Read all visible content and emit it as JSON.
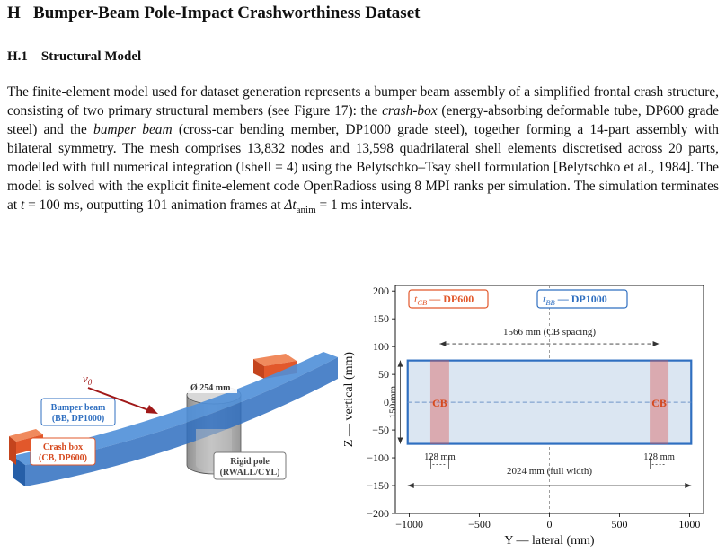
{
  "section": {
    "number": "H",
    "title": "Bumper-Beam Pole-Impact Crashworthiness Dataset"
  },
  "subsection": {
    "number": "H.1",
    "title": "Structural Model"
  },
  "paragraph": {
    "p1": "The finite-element model used for dataset generation represents a bumper beam assembly of a simplified frontal crash structure, consisting of two primary structural members (see Figure 17): the ",
    "crash_box_term": "crash-box",
    "p2": " (energy-absorbing deformable tube, DP600 grade steel) and the ",
    "bumper_beam_term": "bumper beam",
    "p3": " (cross-car bending member, DP1000 grade steel), together forming a 14-part assembly with bilateral symmetry. The mesh comprises 13,832 nodes and 13,598 quadrilateral shell elements discretised across 20 parts, modelled with full numerical integration (Ishell = 4) using the Belytschko–Tsay shell formulation [Belytschko et al., 1984]. The model is solved with the explicit finite-element code OpenRadioss using 8 MPI ranks per simulation. The simulation terminates at ",
    "t_sym": "t",
    "t_val": " = 100 ms, outputting 101 animation frames at ",
    "dt_sym": "Δt",
    "dt_sub": "anim",
    "dt_val": " = 1 ms intervals."
  },
  "figure_left": {
    "velocity_label": "v",
    "velocity_sub": "0",
    "diameter_label": "Ø 254 mm",
    "bumper_label_line1": "Bumper beam",
    "bumper_label_line2": "(BB, DP1000)",
    "crashbox_label_line1": "Crash box",
    "crashbox_label_line2": "(CB, DP600)",
    "pole_label_line1": "Rigid pole",
    "pole_label_line2": "(RWALL/CYL)",
    "colors": {
      "beam": "#2f6fc0",
      "crashbox": "#e2582b",
      "pole": "#b9b9b9",
      "arrow": "#a01818"
    }
  },
  "chart_data": {
    "type": "diagram",
    "xlabel": "Y — lateral (mm)",
    "ylabel": "Z — vertical (mm)",
    "xlim": [
      -1100,
      1100
    ],
    "ylim": [
      -200,
      210
    ],
    "xticks": [
      -1000,
      -500,
      0,
      500,
      1000
    ],
    "xtick_labels": [
      "−1000",
      "−500",
      "0",
      "500",
      "1000"
    ],
    "yticks": [
      -200,
      -150,
      -100,
      -50,
      0,
      50,
      100,
      150,
      200
    ],
    "ytick_labels": [
      "−200",
      "−150",
      "−100",
      "−50",
      "0",
      "50",
      "100",
      "150",
      "200"
    ],
    "beam": {
      "y_min": -1012,
      "y_max": 1012,
      "z_min": -75,
      "z_max": 75,
      "color": "#2f6fc0",
      "fill": "#dbe6f2"
    },
    "crash_boxes": [
      {
        "label": "CB",
        "y_min": -847,
        "y_max": -719
      },
      {
        "label": "CB",
        "y_min": 719,
        "y_max": 847
      }
    ],
    "crashbox_color": "#d9534f",
    "legend_cb": {
      "sym": "t",
      "sub": "CB",
      "text": " — DP600",
      "color": "#e2582b"
    },
    "legend_bb": {
      "sym": "t",
      "sub": "BB",
      "text": " — DP1000",
      "color": "#2f6fc0"
    },
    "spacing_label": "1566 mm  (CB spacing)",
    "spacing_y": [
      -783,
      783
    ],
    "spacing_z": 105,
    "height_label": "150 mm",
    "cb_width_label": "128 mm",
    "full_width_label": "2024 mm  (full width)",
    "full_width_z": -150
  }
}
